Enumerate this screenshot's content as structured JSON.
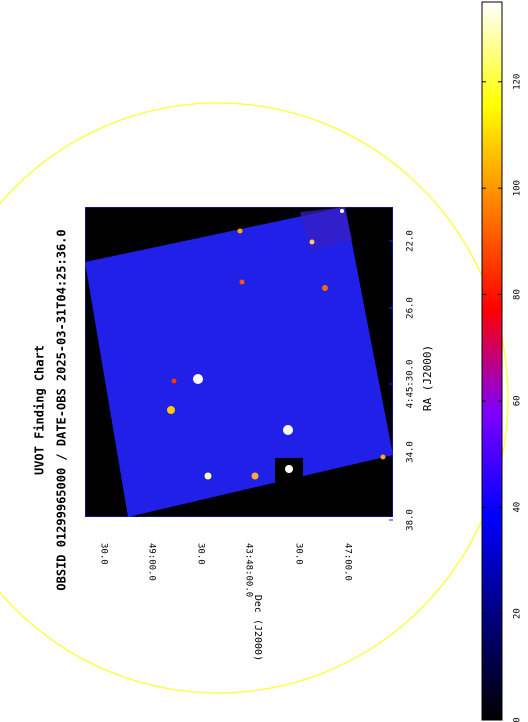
{
  "chart_data": {
    "type": "image",
    "title": "UVOT Finding Chart",
    "subtitle": "OBSID 01299965000 / DATE-OBS 2025-03-31T04:25:36.0",
    "xlabel": "RA (J2000)",
    "ylabel": "Dec (J2000)",
    "xtick_labels": [
      "22.0",
      "26.0",
      "4:45:30.0",
      "34.0",
      "38.0"
    ],
    "ytick_labels": [
      "30.0",
      "49:00.0",
      "30.0",
      "43:48:00.0",
      "30.0",
      "47:00.0"
    ],
    "colorbar": {
      "ylim": [
        0,
        135
      ],
      "yticks": [
        0,
        20,
        40,
        60,
        80,
        100,
        120
      ],
      "colormap": [
        "#000000",
        "#00007f",
        "#0000ff",
        "#7f00ff",
        "#ff0000",
        "#ff7f00",
        "#ffff00",
        "#ffffff"
      ]
    }
  }
}
